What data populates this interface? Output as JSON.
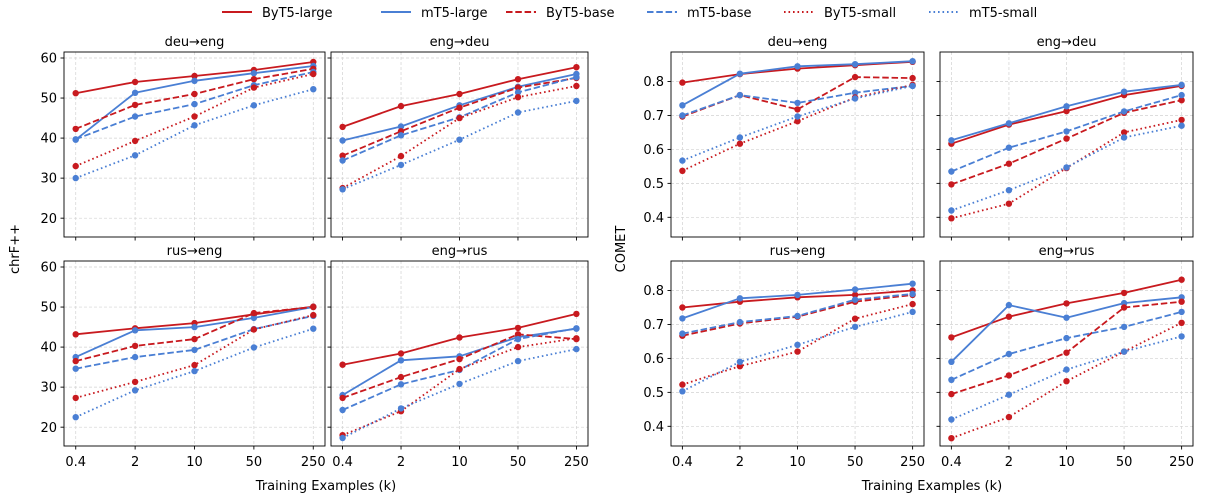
{
  "legend": {
    "placement": "top-center",
    "entries": [
      {
        "name": "ByT5-large",
        "color": "#c81a1f",
        "linestyle": "solid"
      },
      {
        "name": "mT5-large",
        "color": "#4a7fd4",
        "linestyle": "solid"
      },
      {
        "name": "ByT5-base",
        "color": "#c81a1f",
        "linestyle": "dashed"
      },
      {
        "name": "mT5-base",
        "color": "#4a7fd4",
        "linestyle": "dashed"
      },
      {
        "name": "ByT5-small",
        "color": "#c81a1f",
        "linestyle": "dotted"
      },
      {
        "name": "mT5-small",
        "color": "#4a7fd4",
        "linestyle": "dotted"
      }
    ]
  },
  "chart_data": [
    {
      "type": "line",
      "ylabel": "chrF++",
      "xlabel": "Training Examples (k)",
      "categories": [
        "0.4",
        "2",
        "10",
        "50",
        "250"
      ],
      "yticks": [
        20,
        30,
        40,
        50,
        60
      ],
      "ylim": [
        15.3,
        61.5
      ],
      "grid": true,
      "panels": [
        {
          "title": "deu→eng",
          "series": [
            {
              "name": "ByT5-large",
              "values": [
                51.2,
                54.0,
                55.5,
                57.0,
                59.0
              ]
            },
            {
              "name": "mT5-large",
              "values": [
                39.6,
                51.3,
                54.3,
                56.2,
                58.0
              ]
            },
            {
              "name": "ByT5-base",
              "values": [
                42.3,
                48.3,
                51.0,
                54.7,
                57.3
              ]
            },
            {
              "name": "mT5-base",
              "values": [
                39.7,
                45.4,
                48.5,
                53.2,
                56.5
              ]
            },
            {
              "name": "ByT5-small",
              "values": [
                33.0,
                39.3,
                45.4,
                52.6,
                56.0
              ]
            },
            {
              "name": "mT5-small",
              "values": [
                30.0,
                35.7,
                43.2,
                48.2,
                52.2
              ]
            }
          ]
        },
        {
          "title": "eng→deu",
          "series": [
            {
              "name": "ByT5-large",
              "values": [
                42.8,
                48.0,
                51.0,
                54.7,
                57.7
              ]
            },
            {
              "name": "mT5-large",
              "values": [
                39.4,
                42.9,
                48.2,
                52.8,
                56.0
              ]
            },
            {
              "name": "ByT5-base",
              "values": [
                35.6,
                41.7,
                47.6,
                52.6,
                55.0
              ]
            },
            {
              "name": "mT5-base",
              "values": [
                34.4,
                40.7,
                45.2,
                51.4,
                55.2
              ]
            },
            {
              "name": "ByT5-small",
              "values": [
                27.5,
                35.5,
                45.0,
                50.2,
                53.0
              ]
            },
            {
              "name": "mT5-small",
              "values": [
                27.2,
                33.3,
                39.6,
                46.4,
                49.3
              ]
            }
          ]
        },
        {
          "title": "rus→eng",
          "series": [
            {
              "name": "ByT5-large",
              "values": [
                43.2,
                44.7,
                46.0,
                48.2,
                50.1
              ]
            },
            {
              "name": "mT5-large",
              "values": [
                37.5,
                44.2,
                45.0,
                47.3,
                50.0
              ]
            },
            {
              "name": "ByT5-base",
              "values": [
                36.5,
                40.3,
                42.0,
                48.5,
                50.0
              ]
            },
            {
              "name": "mT5-base",
              "values": [
                34.6,
                37.5,
                39.3,
                44.5,
                47.8
              ]
            },
            {
              "name": "ByT5-small",
              "values": [
                27.3,
                31.3,
                35.5,
                44.4,
                48.0
              ]
            },
            {
              "name": "mT5-small",
              "values": [
                22.5,
                29.2,
                34.0,
                39.9,
                44.6
              ]
            }
          ]
        },
        {
          "title": "eng→rus",
          "series": [
            {
              "name": "ByT5-large",
              "values": [
                35.6,
                38.4,
                42.4,
                44.8,
                48.3
              ]
            },
            {
              "name": "mT5-large",
              "values": [
                28.0,
                36.7,
                37.7,
                42.5,
                44.6
              ]
            },
            {
              "name": "ByT5-base",
              "values": [
                27.3,
                32.5,
                37.0,
                43.2,
                42.0
              ]
            },
            {
              "name": "mT5-base",
              "values": [
                24.3,
                30.7,
                34.3,
                42.0,
                44.7
              ]
            },
            {
              "name": "ByT5-small",
              "values": [
                18.0,
                24.0,
                34.5,
                40.0,
                42.2
              ]
            },
            {
              "name": "mT5-small",
              "values": [
                17.3,
                24.7,
                30.8,
                36.5,
                39.5
              ]
            }
          ]
        }
      ]
    },
    {
      "type": "line",
      "ylabel": "COMET",
      "xlabel": "Training Examples (k)",
      "categories": [
        "0.4",
        "2",
        "10",
        "50",
        "250"
      ],
      "yticks": [
        0.4,
        0.5,
        0.6,
        0.7,
        0.8
      ],
      "ylim": [
        0.342,
        0.887
      ],
      "grid": true,
      "panels": [
        {
          "title": "deu→eng",
          "series": [
            {
              "name": "ByT5-large",
              "values": [
                0.797,
                0.822,
                0.838,
                0.848,
                0.858
              ]
            },
            {
              "name": "mT5-large",
              "values": [
                0.73,
                0.823,
                0.845,
                0.851,
                0.86
              ]
            },
            {
              "name": "ByT5-base",
              "values": [
                0.697,
                0.76,
                0.718,
                0.813,
                0.81
              ]
            },
            {
              "name": "mT5-base",
              "values": [
                0.7,
                0.76,
                0.737,
                0.767,
                0.787
              ]
            },
            {
              "name": "ByT5-small",
              "values": [
                0.537,
                0.617,
                0.683,
                0.753,
                0.79
              ]
            },
            {
              "name": "mT5-small",
              "values": [
                0.567,
                0.635,
                0.697,
                0.75,
                0.787
              ]
            }
          ]
        },
        {
          "title": "eng→deu",
          "series": [
            {
              "name": "ByT5-large",
              "values": [
                0.617,
                0.673,
                0.713,
                0.76,
                0.787
              ]
            },
            {
              "name": "mT5-large",
              "values": [
                0.627,
                0.677,
                0.727,
                0.77,
                0.79
              ]
            },
            {
              "name": "ByT5-base",
              "values": [
                0.497,
                0.558,
                0.632,
                0.708,
                0.745
              ]
            },
            {
              "name": "mT5-base",
              "values": [
                0.535,
                0.605,
                0.653,
                0.712,
                0.76
              ]
            },
            {
              "name": "ByT5-small",
              "values": [
                0.397,
                0.44,
                0.545,
                0.65,
                0.687
              ]
            },
            {
              "name": "mT5-small",
              "values": [
                0.42,
                0.48,
                0.547,
                0.635,
                0.67
              ]
            }
          ]
        },
        {
          "title": "rus→eng",
          "series": [
            {
              "name": "ByT5-large",
              "values": [
                0.75,
                0.767,
                0.78,
                0.787,
                0.8
              ]
            },
            {
              "name": "mT5-large",
              "values": [
                0.718,
                0.777,
                0.787,
                0.803,
                0.82
              ]
            },
            {
              "name": "ByT5-base",
              "values": [
                0.667,
                0.703,
                0.723,
                0.767,
                0.787
              ]
            },
            {
              "name": "mT5-base",
              "values": [
                0.673,
                0.707,
                0.725,
                0.773,
                0.79
              ]
            },
            {
              "name": "ByT5-small",
              "values": [
                0.523,
                0.577,
                0.62,
                0.717,
                0.76
              ]
            },
            {
              "name": "mT5-small",
              "values": [
                0.503,
                0.59,
                0.64,
                0.693,
                0.737
              ]
            }
          ]
        },
        {
          "title": "eng→rus",
          "series": [
            {
              "name": "ByT5-large",
              "values": [
                0.662,
                0.723,
                0.762,
                0.793,
                0.832
              ]
            },
            {
              "name": "mT5-large",
              "values": [
                0.59,
                0.757,
                0.72,
                0.763,
                0.78
              ]
            },
            {
              "name": "ByT5-base",
              "values": [
                0.495,
                0.55,
                0.617,
                0.75,
                0.767
              ]
            },
            {
              "name": "mT5-base",
              "values": [
                0.537,
                0.613,
                0.66,
                0.693,
                0.737
              ]
            },
            {
              "name": "ByT5-small",
              "values": [
                0.365,
                0.427,
                0.533,
                0.62,
                0.705
              ]
            },
            {
              "name": "mT5-small",
              "values": [
                0.42,
                0.493,
                0.567,
                0.62,
                0.665
              ]
            }
          ]
        }
      ]
    }
  ]
}
